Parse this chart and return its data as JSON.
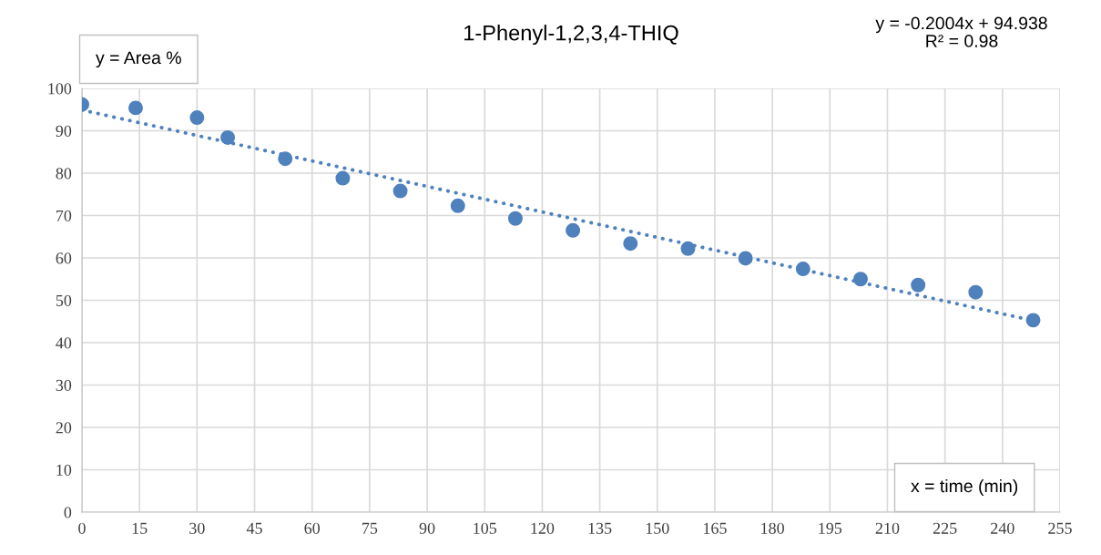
{
  "chart_data": {
    "type": "scatter",
    "title": "1-Phenyl-1,2,3,4-THIQ",
    "annotations": [
      "y = -0.2004x + 94.938\nR² = 0.98",
      "y = Area %",
      "x = time (min)"
    ],
    "series": [
      {
        "color": "#4f81bd",
        "marker": "circle",
        "x": [
          0,
          14,
          30,
          38,
          53,
          68,
          83,
          98,
          113,
          128,
          143,
          158,
          173,
          188,
          203,
          218,
          233,
          248
        ],
        "values": [
          96.2,
          95.4,
          93.1,
          88.4,
          83.4,
          78.8,
          75.8,
          72.3,
          69.3,
          66.5,
          63.4,
          62.2,
          59.9,
          57.4,
          55.0,
          53.6,
          51.9,
          45.3
        ]
      },
      {
        "type": "line",
        "color": "#4f81bd",
        "line_style": "dotted",
        "x": [
          0,
          248
        ],
        "values": [
          94.9,
          45.2
        ]
      }
    ],
    "xlim": [
      0,
      255
    ],
    "xticks": [
      0,
      15,
      30,
      45,
      60,
      75,
      90,
      105,
      120,
      135,
      150,
      165,
      180,
      195,
      210,
      225,
      240,
      255
    ],
    "ylim": [
      0,
      100
    ],
    "yticks": [
      0,
      10,
      20,
      30,
      40,
      50,
      60,
      70,
      80,
      90,
      100
    ],
    "grid": true,
    "legend": false
  }
}
